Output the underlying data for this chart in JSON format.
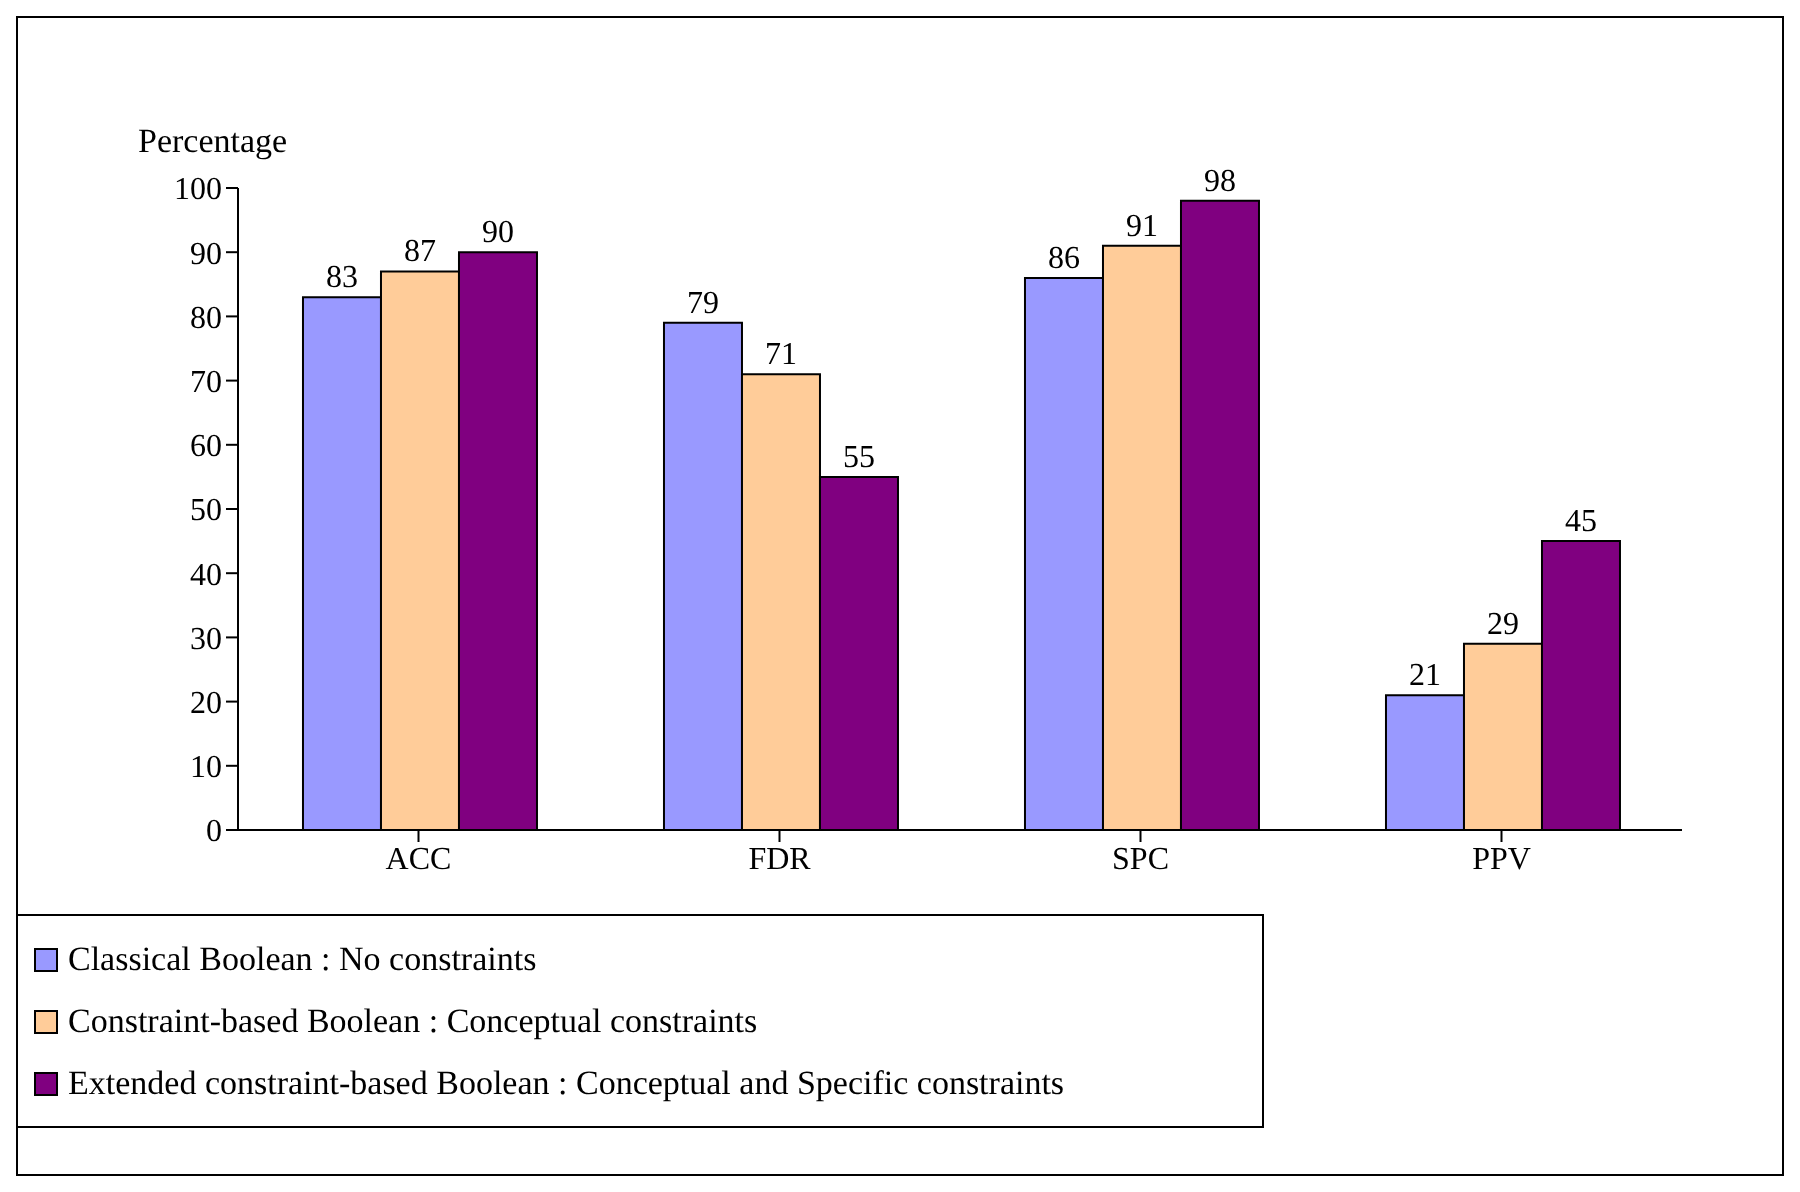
{
  "chart_data": {
    "type": "bar",
    "ylabel": "Percentage",
    "categories": [
      "ACC",
      "FDR",
      "SPC",
      "PPV"
    ],
    "series": [
      {
        "name": "Classical Boolean : No constraints",
        "color": "#9999ff",
        "values": [
          83,
          79,
          86,
          21
        ]
      },
      {
        "name": "Constraint-based Boolean : Conceptual constraints",
        "color": "#ffcc99",
        "values": [
          87,
          71,
          91,
          29
        ]
      },
      {
        "name": "Extended constraint-based Boolean : Conceptual and Specific constraints",
        "color": "#800080",
        "values": [
          90,
          55,
          98,
          45
        ]
      }
    ],
    "ylim": [
      0,
      100
    ],
    "yticks": [
      0,
      10,
      20,
      30,
      40,
      50,
      60,
      70,
      80,
      90,
      100
    ],
    "grid": false,
    "legend": "bottom",
    "data_labels": true
  }
}
